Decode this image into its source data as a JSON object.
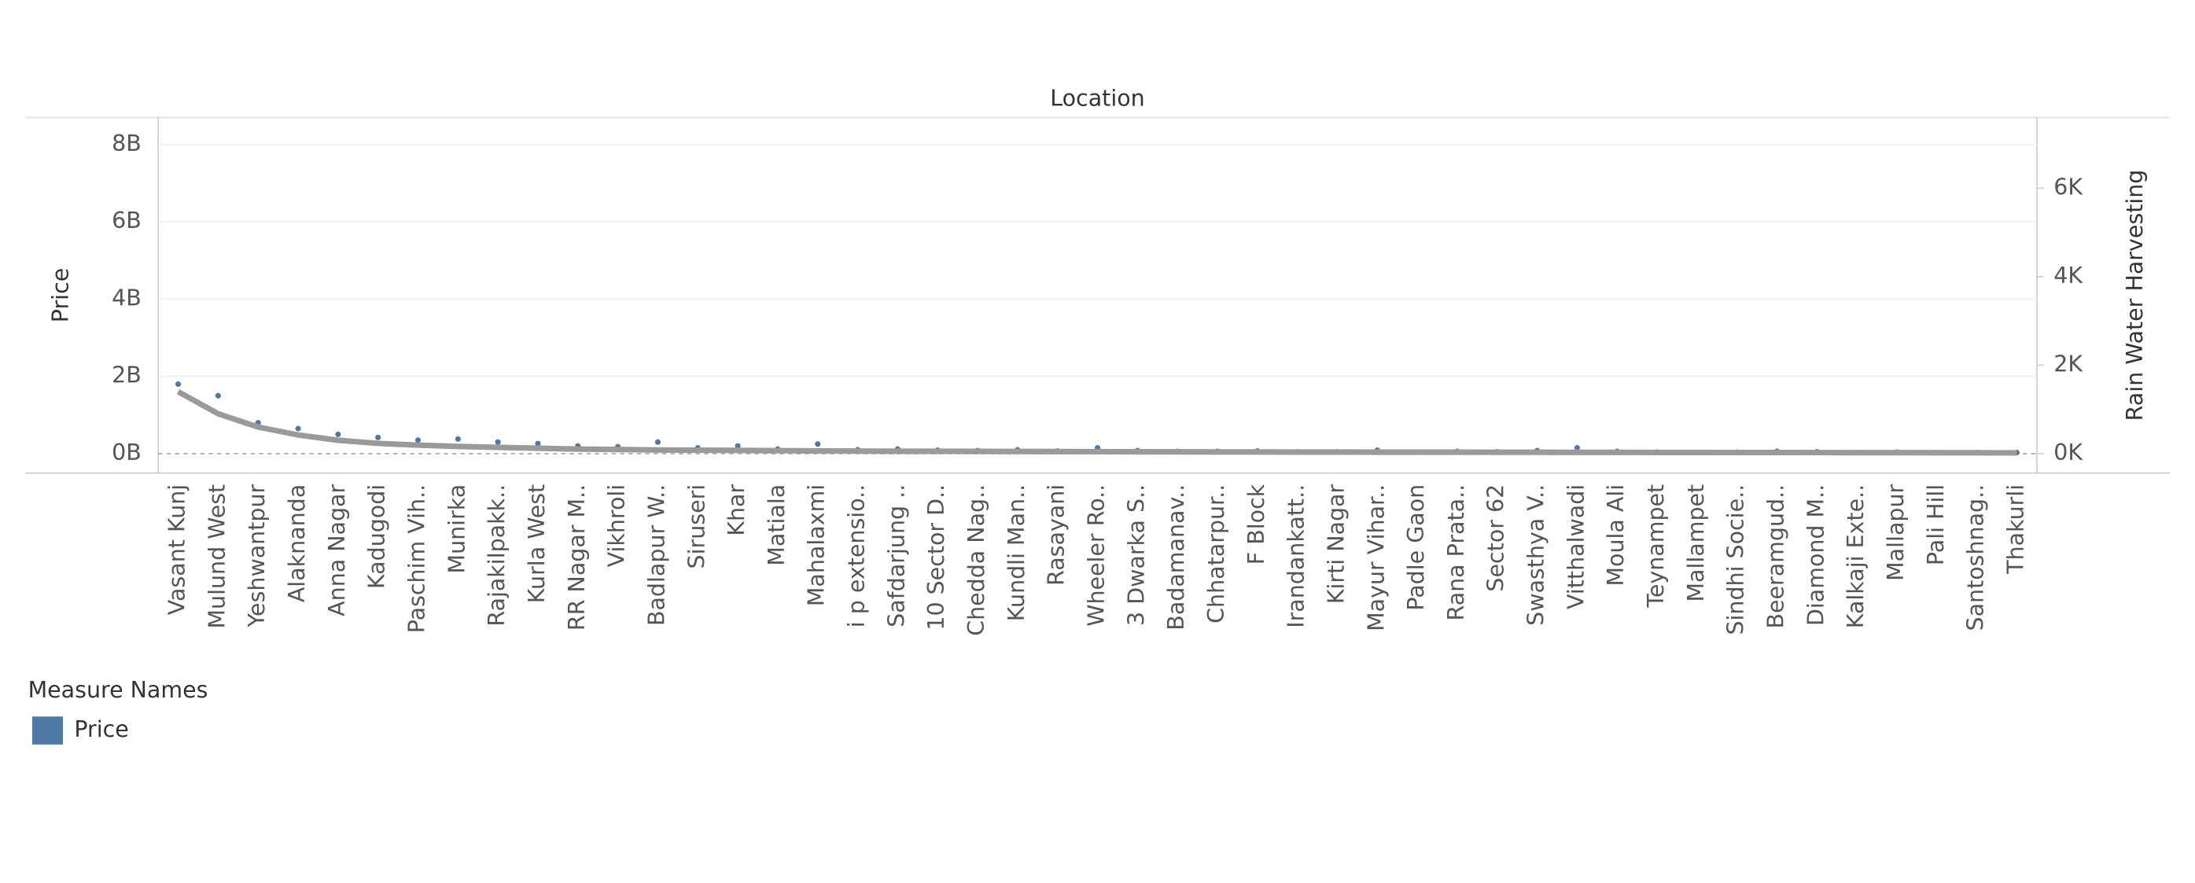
{
  "chart_data": {
    "type": "scatter",
    "title": "Location",
    "categories": [
      "Vasant Kunj",
      "Mulund West",
      "Yeshwantpur",
      "Alaknanda",
      "Anna Nagar",
      "Kadugodi",
      "Paschim Vih..",
      "Munirka",
      "Rajakilpakk..",
      "Kurla West",
      "RR Nagar M..",
      "Vikhroli",
      "Badlapur W..",
      "Siruseri",
      "Khar",
      "Matiala",
      "Mahalaxmi",
      "i p extensio..",
      "Safdarjung ..",
      "10 Sector D..",
      "Chedda Nag..",
      "Kundli Man..",
      "Rasayani",
      "Wheeler Ro..",
      "3 Dwarka S..",
      "Badamanav..",
      "Chhatarpur..",
      "F Block",
      "Irandankatt..",
      "Kirti Nagar",
      "Mayur Vihar..",
      "Padle Gaon",
      "Rana Prata..",
      "Sector 62",
      "Swasthya V..",
      "Vitthalwadi",
      "Moula Ali",
      "Teynampet",
      "Mallampet",
      "Sindhi Socie..",
      "Beeramgud..",
      "Diamond M..",
      "Kalkaji Exte..",
      "Mallapur",
      "Pali Hill",
      "Santoshnag..",
      "Thakurli"
    ],
    "series": [
      {
        "name": "Price",
        "color": "#4e79a7",
        "values": [
          1800000000,
          1500000000,
          800000000,
          650000000,
          500000000,
          420000000,
          350000000,
          380000000,
          300000000,
          260000000,
          200000000,
          180000000,
          300000000,
          150000000,
          200000000,
          120000000,
          250000000,
          100000000,
          120000000,
          90000000,
          80000000,
          100000000,
          70000000,
          150000000,
          80000000,
          60000000,
          60000000,
          70000000,
          50000000,
          50000000,
          90000000,
          40000000,
          60000000,
          50000000,
          80000000,
          150000000,
          60000000,
          40000000,
          30000000,
          40000000,
          60000000,
          50000000,
          30000000,
          40000000,
          30000000,
          30000000,
          30000000
        ]
      },
      {
        "name": "Rain Water Harvesting",
        "color": "#9a9a9a",
        "axis": "y2",
        "mark": "line",
        "values": [
          1400,
          900,
          600,
          420,
          300,
          230,
          190,
          160,
          140,
          120,
          100,
          90,
          80,
          75,
          70,
          65,
          60,
          55,
          52,
          50,
          48,
          46,
          44,
          42,
          40,
          38,
          36,
          35,
          34,
          33,
          32,
          31,
          30,
          29,
          28,
          27,
          26,
          25,
          24,
          23,
          22,
          21,
          20,
          19,
          18,
          17,
          16
        ]
      }
    ],
    "ylim": [
      -500000000,
      8700000000
    ],
    "yticks": [
      {
        "value": 0,
        "label": "0B"
      },
      {
        "value": 2000000000,
        "label": "2B"
      },
      {
        "value": 4000000000,
        "label": "4B"
      },
      {
        "value": 6000000000,
        "label": "6B"
      },
      {
        "value": 8000000000,
        "label": "8B"
      }
    ],
    "y2lim": [
      -440,
      7600
    ],
    "y2ticks": [
      {
        "value": 0,
        "label": "0K"
      },
      {
        "value": 2000,
        "label": "2K"
      },
      {
        "value": 4000,
        "label": "4K"
      },
      {
        "value": 6000,
        "label": "6K"
      }
    ],
    "grid": true,
    "legend": {
      "title": "Measure Names",
      "position": "bottom-left"
    }
  }
}
